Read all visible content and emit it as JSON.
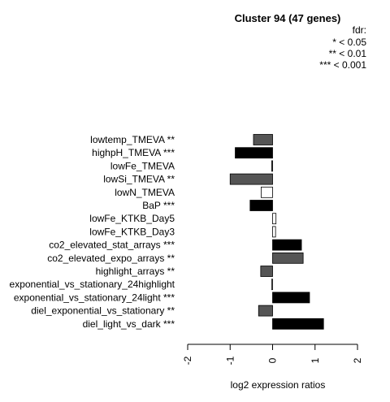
{
  "chart_data": {
    "type": "bar",
    "orientation": "horizontal",
    "title": "Cluster 94 (47 genes)",
    "legend": {
      "title": "fdr:",
      "items": [
        "* < 0.05",
        "** < 0.01",
        "*** < 0.001"
      ],
      "placement": "top-right"
    },
    "categories": [
      "lowtemp_TMEVA **",
      "highpH_TMEVA ***",
      "lowFe_TMEVA",
      "lowSi_TMEVA **",
      "lowN_TMEVA",
      "BaP ***",
      "lowFe_KTKB_Day5",
      "lowFe_KTKB_Day3",
      "co2_elevated_stat_arrays ***",
      "co2_elevated_expo_arrays **",
      "highlight_arrays **",
      "exponential_vs_stationary_24highlight",
      "exponential_vs_stationary_24light ***",
      "diel_exponential_vs_stationary **",
      "diel_light_vs_dark ***"
    ],
    "values": [
      -0.45,
      -0.88,
      -0.02,
      -1.0,
      -0.27,
      -0.53,
      0.08,
      0.07,
      0.68,
      0.72,
      -0.28,
      -0.02,
      0.87,
      -0.33,
      1.2
    ],
    "bar_colors": [
      "#555555",
      "#000000",
      "#555555",
      "#555555",
      "#ffffff",
      "#000000",
      "#ffffff",
      "#ffffff",
      "#000000",
      "#555555",
      "#555555",
      "#ffffff",
      "#000000",
      "#555555",
      "#000000"
    ],
    "xlabel": "log2 expression ratios",
    "xlim": [
      -2,
      2
    ],
    "xticks": [
      "-2",
      "-1",
      "0",
      "1",
      "2"
    ],
    "xtick_values": [
      -2,
      -1,
      0,
      1,
      2
    ],
    "grid": false
  }
}
